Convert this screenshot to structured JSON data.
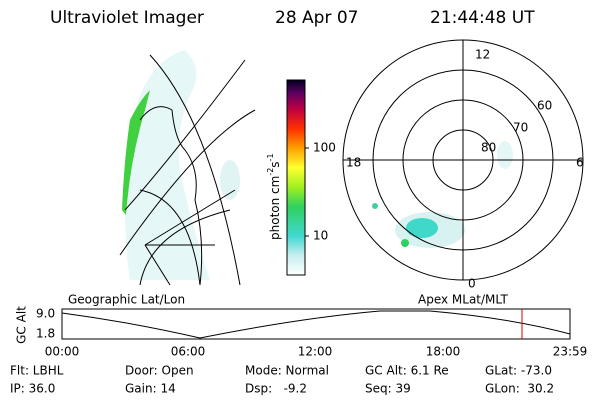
{
  "header": {
    "instrument": "Ultraviolet Imager",
    "date": "28 Apr 07",
    "time": "21:44:48 UT"
  },
  "colorbar": {
    "label": [
      "photon cm",
      "-2",
      "s",
      "-1"
    ],
    "ticks": [
      "100",
      "10"
    ]
  },
  "polar": {
    "labels": [
      "12",
      "60",
      "70",
      "80",
      "18",
      "6",
      "0"
    ]
  },
  "altitude_plot": {
    "left_title": "Geographic Lat/Lon",
    "right_title": "Apex MLat/MLT",
    "axis_label": "GC Alt",
    "y_labels": [
      "9.0",
      "1.8"
    ],
    "x_labels": [
      "00:00",
      "06:00",
      "12:00",
      "18:00",
      "23:59"
    ]
  },
  "info": {
    "rows": [
      [
        "Flt: LBHL",
        "Door: Open",
        "Mode: Normal",
        "GC Alt: 6.1 Re",
        "GLat: -73.0"
      ],
      [
        "IP: 36.0",
        "Gain: 14",
        "Dsp:   -9.2",
        "Seq: 39",
        "GLon:  30.2"
      ]
    ]
  }
}
